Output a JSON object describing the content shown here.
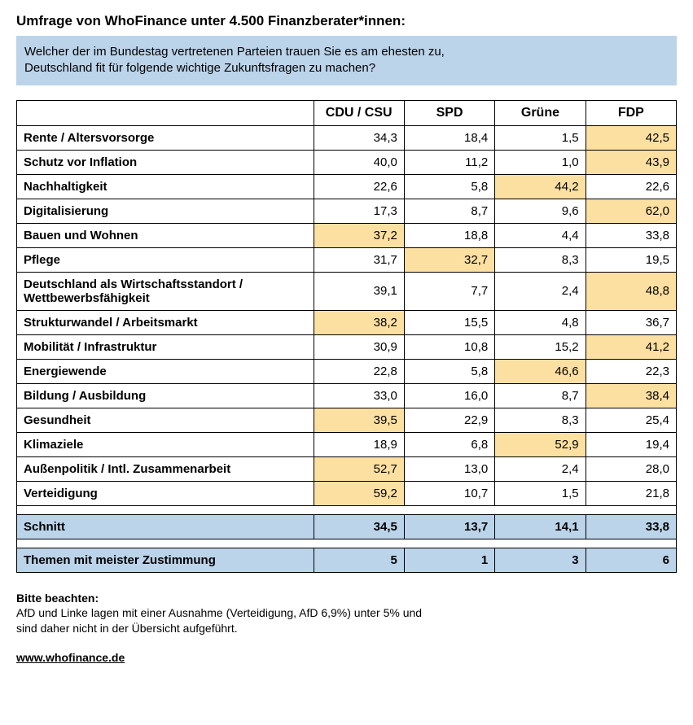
{
  "title": "Umfrage von WhoFinance unter 4.500 Finanzberater*innen:",
  "question_line1": "Welcher der im Bundestag vertretenen Parteien trauen Sie es am ehesten zu,",
  "question_line2": "Deutschland fit für folgende wichtige Zukunftsfragen zu machen?",
  "table": {
    "highlight_color": "#fbe0a2",
    "summary_bg": "#bcd4ea",
    "columns": [
      "CDU / CSU",
      "SPD",
      "Grüne",
      "FDP"
    ],
    "rows": [
      {
        "label": "Rente / Altersvorsorge",
        "values": [
          "34,3",
          "18,4",
          "1,5",
          "42,5"
        ],
        "hl": [
          false,
          false,
          false,
          true
        ]
      },
      {
        "label": "Schutz vor Inflation",
        "values": [
          "40,0",
          "11,2",
          "1,0",
          "43,9"
        ],
        "hl": [
          false,
          false,
          false,
          true
        ]
      },
      {
        "label": "Nachhaltigkeit",
        "values": [
          "22,6",
          "5,8",
          "44,2",
          "22,6"
        ],
        "hl": [
          false,
          false,
          true,
          false
        ]
      },
      {
        "label": "Digitalisierung",
        "values": [
          "17,3",
          "8,7",
          "9,6",
          "62,0"
        ],
        "hl": [
          false,
          false,
          false,
          true
        ]
      },
      {
        "label": "Bauen und Wohnen",
        "values": [
          "37,2",
          "18,8",
          "4,4",
          "33,8"
        ],
        "hl": [
          true,
          false,
          false,
          false
        ]
      },
      {
        "label": "Pflege",
        "values": [
          "31,7",
          "32,7",
          "8,3",
          "19,5"
        ],
        "hl": [
          false,
          true,
          false,
          false
        ]
      },
      {
        "label": "Deutschland als Wirtschaftsstandort / Wettbewerbsfähigkeit",
        "values": [
          "39,1",
          "7,7",
          "2,4",
          "48,8"
        ],
        "hl": [
          false,
          false,
          false,
          true
        ]
      },
      {
        "label": "Strukturwandel / Arbeitsmarkt",
        "values": [
          "38,2",
          "15,5",
          "4,8",
          "36,7"
        ],
        "hl": [
          true,
          false,
          false,
          false
        ]
      },
      {
        "label": "Mobilität / Infrastruktur",
        "values": [
          "30,9",
          "10,8",
          "15,2",
          "41,2"
        ],
        "hl": [
          false,
          false,
          false,
          true
        ]
      },
      {
        "label": "Energiewende",
        "values": [
          "22,8",
          "5,8",
          "46,6",
          "22,3"
        ],
        "hl": [
          false,
          false,
          true,
          false
        ]
      },
      {
        "label": "Bildung / Ausbildung",
        "values": [
          "33,0",
          "16,0",
          "8,7",
          "38,4"
        ],
        "hl": [
          false,
          false,
          false,
          true
        ]
      },
      {
        "label": "Gesundheit",
        "values": [
          "39,5",
          "22,9",
          "8,3",
          "25,4"
        ],
        "hl": [
          true,
          false,
          false,
          false
        ]
      },
      {
        "label": "Klimaziele",
        "values": [
          "18,9",
          "6,8",
          "52,9",
          "19,4"
        ],
        "hl": [
          false,
          false,
          true,
          false
        ]
      },
      {
        "label": "Außenpolitik / Intl. Zusammenarbeit",
        "values": [
          "52,7",
          "13,0",
          "2,4",
          "28,0"
        ],
        "hl": [
          true,
          false,
          false,
          false
        ]
      },
      {
        "label": "Verteidigung",
        "values": [
          "59,2",
          "10,7",
          "1,5",
          "21,8"
        ],
        "hl": [
          true,
          false,
          false,
          false
        ]
      }
    ],
    "avg_label": "Schnitt",
    "avg_values": [
      "34,5",
      "13,7",
      "14,1",
      "33,8"
    ],
    "count_label": "Themen mit meister Zustimmung",
    "count_values": [
      "5",
      "1",
      "3",
      "6"
    ]
  },
  "note_title": "Bitte beachten:",
  "note_line1": "AfD und Linke lagen mit einer Ausnahme (Verteidigung, AfD 6,9%) unter 5% und",
  "note_line2": "sind daher nicht in der Übersicht aufgeführt.",
  "site_link": "www.whofinance.de"
}
